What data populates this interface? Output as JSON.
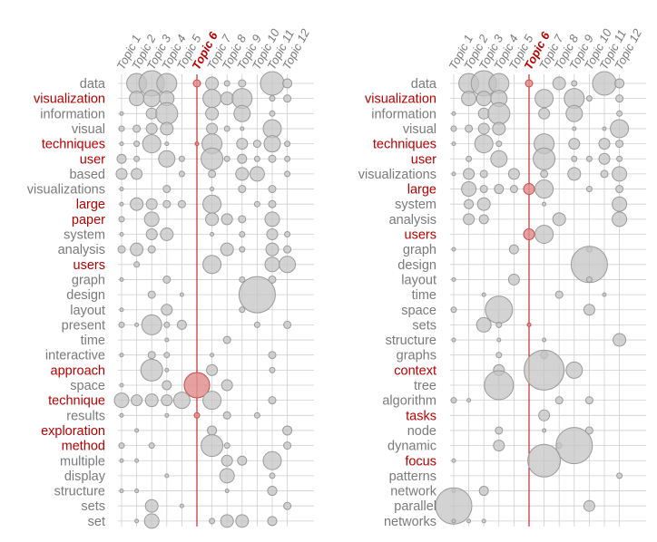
{
  "colors": {
    "highlight": "#b80000",
    "normal": "#7a7a7a",
    "grid": "#cfcfcf",
    "bubble_fill": "#c4c4c4",
    "bubble_stroke": "#9a9a9a",
    "bubble_fill_hl": "#e08f8f",
    "bubble_stroke_hl": "#c84a4a"
  },
  "chart_data": [
    {
      "type": "bubble-matrix",
      "topics": [
        "Topic 1",
        "Topic 2",
        "Topic 3",
        "Topic 4",
        "Topic 5",
        "Topic 6",
        "Topic 7",
        "Topic 8",
        "Topic 9",
        "Topic 10",
        "Topic 11",
        "Topic 12"
      ],
      "highlight_topic": 6,
      "terms": [
        "data",
        "visualization",
        "information",
        "visual",
        "techniques",
        "user",
        "based",
        "visualizations",
        "large",
        "paper",
        "system",
        "analysis",
        "users",
        "graph",
        "design",
        "layout",
        "present",
        "time",
        "interactive",
        "approach",
        "space",
        "technique",
        "results",
        "exploration",
        "method",
        "multiple",
        "display",
        "structure",
        "sets",
        "set"
      ],
      "highlighted_terms": [
        "visualization",
        "techniques",
        "user",
        "large",
        "paper",
        "users",
        "approach",
        "technique",
        "exploration",
        "method"
      ],
      "cells": [
        [
          0,
          1,
          11
        ],
        [
          0,
          2,
          14
        ],
        [
          0,
          3,
          11
        ],
        [
          0,
          5,
          4
        ],
        [
          0,
          6,
          7
        ],
        [
          0,
          7,
          3
        ],
        [
          0,
          8,
          4
        ],
        [
          0,
          10,
          13
        ],
        [
          0,
          11,
          5
        ],
        [
          1,
          1,
          8
        ],
        [
          1,
          2,
          9
        ],
        [
          1,
          3,
          8
        ],
        [
          1,
          6,
          10
        ],
        [
          1,
          7,
          7
        ],
        [
          1,
          8,
          11
        ],
        [
          1,
          10,
          3
        ],
        [
          1,
          11,
          4
        ],
        [
          2,
          0,
          2
        ],
        [
          2,
          2,
          6
        ],
        [
          2,
          3,
          12
        ],
        [
          2,
          6,
          7
        ],
        [
          2,
          8,
          9
        ],
        [
          2,
          10,
          3
        ],
        [
          3,
          0,
          3
        ],
        [
          3,
          1,
          4
        ],
        [
          3,
          2,
          6
        ],
        [
          3,
          3,
          7
        ],
        [
          3,
          6,
          6
        ],
        [
          3,
          7,
          3
        ],
        [
          3,
          8,
          2
        ],
        [
          3,
          10,
          10
        ],
        [
          4,
          0,
          2
        ],
        [
          4,
          1,
          3
        ],
        [
          4,
          2,
          10
        ],
        [
          4,
          3,
          2
        ],
        [
          4,
          5,
          2
        ],
        [
          4,
          6,
          11
        ],
        [
          4,
          8,
          6
        ],
        [
          4,
          9,
          4
        ],
        [
          4,
          10,
          9
        ],
        [
          4,
          11,
          3
        ],
        [
          5,
          0,
          5
        ],
        [
          5,
          1,
          3
        ],
        [
          5,
          3,
          9
        ],
        [
          5,
          4,
          3
        ],
        [
          5,
          6,
          12
        ],
        [
          5,
          7,
          3
        ],
        [
          5,
          8,
          5
        ],
        [
          5,
          9,
          3
        ],
        [
          5,
          10,
          4
        ],
        [
          5,
          11,
          3
        ],
        [
          6,
          0,
          6
        ],
        [
          6,
          1,
          6
        ],
        [
          6,
          4,
          3
        ],
        [
          6,
          6,
          4
        ],
        [
          6,
          8,
          7
        ],
        [
          6,
          9,
          8
        ],
        [
          6,
          11,
          3
        ],
        [
          7,
          0,
          2
        ],
        [
          7,
          3,
          4
        ],
        [
          7,
          6,
          2
        ],
        [
          7,
          8,
          4
        ],
        [
          7,
          10,
          4
        ],
        [
          8,
          0,
          2
        ],
        [
          8,
          1,
          7
        ],
        [
          8,
          2,
          6
        ],
        [
          8,
          3,
          4
        ],
        [
          8,
          4,
          4
        ],
        [
          8,
          6,
          10
        ],
        [
          8,
          9,
          3
        ],
        [
          8,
          10,
          4
        ],
        [
          9,
          0,
          3
        ],
        [
          9,
          2,
          8
        ],
        [
          9,
          6,
          7
        ],
        [
          9,
          7,
          6
        ],
        [
          9,
          8,
          4
        ],
        [
          9,
          10,
          8
        ],
        [
          10,
          0,
          2
        ],
        [
          10,
          2,
          6
        ],
        [
          10,
          3,
          7
        ],
        [
          10,
          6,
          2
        ],
        [
          10,
          8,
          3
        ],
        [
          10,
          10,
          6
        ],
        [
          10,
          11,
          3
        ],
        [
          11,
          0,
          4
        ],
        [
          11,
          1,
          7
        ],
        [
          11,
          2,
          4
        ],
        [
          11,
          7,
          7
        ],
        [
          11,
          8,
          3
        ],
        [
          11,
          10,
          7
        ],
        [
          11,
          11,
          4
        ],
        [
          12,
          1,
          3
        ],
        [
          12,
          6,
          10
        ],
        [
          12,
          10,
          8
        ],
        [
          12,
          11,
          9
        ],
        [
          13,
          0,
          2
        ],
        [
          13,
          3,
          4
        ],
        [
          13,
          8,
          3
        ],
        [
          13,
          10,
          4
        ],
        [
          14,
          2,
          4
        ],
        [
          14,
          4,
          2
        ],
        [
          14,
          9,
          20
        ],
        [
          15,
          0,
          2
        ],
        [
          15,
          3,
          6
        ],
        [
          15,
          8,
          3
        ],
        [
          16,
          0,
          3
        ],
        [
          16,
          1,
          2
        ],
        [
          16,
          2,
          11
        ],
        [
          16,
          3,
          3
        ],
        [
          16,
          4,
          5
        ],
        [
          16,
          9,
          3
        ],
        [
          16,
          11,
          4
        ],
        [
          17,
          3,
          2
        ],
        [
          17,
          7,
          4
        ],
        [
          18,
          0,
          2
        ],
        [
          18,
          2,
          4
        ],
        [
          18,
          3,
          3
        ],
        [
          18,
          6,
          2
        ],
        [
          18,
          10,
          4
        ],
        [
          19,
          2,
          12
        ],
        [
          19,
          3,
          2
        ],
        [
          19,
          6,
          6
        ],
        [
          19,
          10,
          3
        ],
        [
          20,
          0,
          2
        ],
        [
          20,
          3,
          5
        ],
        [
          20,
          5,
          14
        ],
        [
          20,
          7,
          6
        ],
        [
          21,
          0,
          8
        ],
        [
          21,
          1,
          6
        ],
        [
          21,
          2,
          7
        ],
        [
          21,
          3,
          6
        ],
        [
          21,
          4,
          9
        ],
        [
          21,
          6,
          10
        ],
        [
          21,
          10,
          4
        ],
        [
          22,
          0,
          2
        ],
        [
          22,
          3,
          2
        ],
        [
          22,
          5,
          3
        ],
        [
          22,
          7,
          4
        ],
        [
          22,
          9,
          3
        ],
        [
          23,
          1,
          2
        ],
        [
          23,
          6,
          5
        ],
        [
          23,
          11,
          5
        ],
        [
          24,
          0,
          3
        ],
        [
          24,
          2,
          3
        ],
        [
          24,
          6,
          12
        ],
        [
          24,
          7,
          3
        ],
        [
          24,
          11,
          4
        ],
        [
          25,
          0,
          2
        ],
        [
          25,
          1,
          2
        ],
        [
          25,
          7,
          6
        ],
        [
          25,
          8,
          5
        ],
        [
          25,
          10,
          10
        ],
        [
          26,
          3,
          2
        ],
        [
          26,
          7,
          8
        ],
        [
          26,
          10,
          3
        ],
        [
          27,
          0,
          2
        ],
        [
          27,
          1,
          2
        ],
        [
          27,
          7,
          2
        ],
        [
          27,
          10,
          5
        ],
        [
          28,
          2,
          7
        ],
        [
          28,
          4,
          2
        ],
        [
          28,
          11,
          4
        ],
        [
          29,
          1,
          2
        ],
        [
          29,
          2,
          8
        ],
        [
          29,
          6,
          3
        ],
        [
          29,
          7,
          7
        ],
        [
          29,
          8,
          7
        ],
        [
          29,
          10,
          5
        ]
      ]
    },
    {
      "type": "bubble-matrix",
      "topics": [
        "Topic 1",
        "Topic 2",
        "Topic 3",
        "Topic 4",
        "Topic 5",
        "Topic 6",
        "Topic 7",
        "Topic 8",
        "Topic 9",
        "Topic 10",
        "Topic 11",
        "Topic 12"
      ],
      "highlight_topic": 6,
      "terms": [
        "data",
        "visualization",
        "information",
        "visual",
        "techniques",
        "user",
        "visualizations",
        "large",
        "system",
        "analysis",
        "users",
        "graph",
        "design",
        "layout",
        "time",
        "space",
        "sets",
        "structure",
        "graphs",
        "context",
        "tree",
        "algorithm",
        "tasks",
        "node",
        "dynamic",
        "focus",
        "patterns",
        "network",
        "parallel",
        "networks"
      ],
      "highlighted_terms": [
        "visualization",
        "techniques",
        "user",
        "large",
        "users",
        "context",
        "tasks",
        "focus"
      ],
      "cells": [
        [
          0,
          1,
          11
        ],
        [
          0,
          2,
          14
        ],
        [
          0,
          3,
          11
        ],
        [
          0,
          5,
          4
        ],
        [
          0,
          7,
          7
        ],
        [
          0,
          8,
          3
        ],
        [
          0,
          10,
          13
        ],
        [
          0,
          11,
          5
        ],
        [
          0,
          12,
          4
        ],
        [
          1,
          1,
          8
        ],
        [
          1,
          2,
          8
        ],
        [
          1,
          3,
          9
        ],
        [
          1,
          6,
          10
        ],
        [
          1,
          8,
          11
        ],
        [
          1,
          9,
          3
        ],
        [
          1,
          11,
          4
        ],
        [
          2,
          0,
          2
        ],
        [
          2,
          2,
          6
        ],
        [
          2,
          3,
          12
        ],
        [
          2,
          6,
          6
        ],
        [
          2,
          8,
          9
        ],
        [
          2,
          11,
          3
        ],
        [
          3,
          0,
          3
        ],
        [
          3,
          1,
          4
        ],
        [
          3,
          2,
          6
        ],
        [
          3,
          3,
          7
        ],
        [
          3,
          8,
          2
        ],
        [
          3,
          10,
          2
        ],
        [
          3,
          11,
          10
        ],
        [
          4,
          0,
          2
        ],
        [
          4,
          2,
          10
        ],
        [
          4,
          3,
          3
        ],
        [
          4,
          6,
          11
        ],
        [
          4,
          8,
          6
        ],
        [
          4,
          10,
          6
        ],
        [
          4,
          11,
          4
        ],
        [
          5,
          1,
          3
        ],
        [
          5,
          3,
          9
        ],
        [
          5,
          6,
          12
        ],
        [
          5,
          8,
          3
        ],
        [
          5,
          9,
          3
        ],
        [
          5,
          10,
          6
        ],
        [
          5,
          11,
          3
        ],
        [
          6,
          0,
          2
        ],
        [
          6,
          1,
          6
        ],
        [
          6,
          2,
          4
        ],
        [
          6,
          4,
          6
        ],
        [
          6,
          6,
          4
        ],
        [
          6,
          8,
          7
        ],
        [
          6,
          10,
          4
        ],
        [
          6,
          11,
          8
        ],
        [
          6,
          12,
          3
        ],
        [
          7,
          1,
          8
        ],
        [
          7,
          2,
          4
        ],
        [
          7,
          3,
          5
        ],
        [
          7,
          4,
          4
        ],
        [
          7,
          5,
          6
        ],
        [
          7,
          6,
          10
        ],
        [
          7,
          9,
          3
        ],
        [
          7,
          11,
          4
        ],
        [
          8,
          1,
          5
        ],
        [
          8,
          2,
          7
        ],
        [
          8,
          6,
          2
        ],
        [
          8,
          11,
          8
        ],
        [
          9,
          1,
          6
        ],
        [
          9,
          2,
          5
        ],
        [
          9,
          7,
          7
        ],
        [
          9,
          11,
          8
        ],
        [
          9,
          12,
          8
        ],
        [
          10,
          5,
          6
        ],
        [
          10,
          6,
          10
        ],
        [
          11,
          0,
          2
        ],
        [
          11,
          4,
          5
        ],
        [
          11,
          9,
          3
        ],
        [
          12,
          9,
          20
        ],
        [
          13,
          0,
          2
        ],
        [
          13,
          4,
          6
        ],
        [
          13,
          9,
          3
        ],
        [
          14,
          2,
          2
        ],
        [
          14,
          7,
          4
        ],
        [
          14,
          10,
          2
        ],
        [
          15,
          0,
          3
        ],
        [
          15,
          3,
          15
        ],
        [
          15,
          9,
          6
        ],
        [
          16,
          2,
          8
        ],
        [
          16,
          3,
          3
        ],
        [
          16,
          5,
          2
        ],
        [
          16,
          12,
          6
        ],
        [
          17,
          0,
          2
        ],
        [
          17,
          3,
          2
        ],
        [
          17,
          6,
          2
        ],
        [
          17,
          11,
          7
        ],
        [
          18,
          3,
          3
        ],
        [
          18,
          6,
          4
        ],
        [
          19,
          3,
          6
        ],
        [
          19,
          6,
          22
        ],
        [
          19,
          8,
          9
        ],
        [
          20,
          3,
          16
        ],
        [
          21,
          0,
          3
        ],
        [
          21,
          1,
          2
        ],
        [
          21,
          7,
          4
        ],
        [
          21,
          9,
          4
        ],
        [
          22,
          6,
          6
        ],
        [
          23,
          3,
          4
        ],
        [
          23,
          6,
          2
        ],
        [
          23,
          9,
          4
        ],
        [
          24,
          3,
          6
        ],
        [
          24,
          7,
          3
        ],
        [
          24,
          8,
          20
        ],
        [
          25,
          0,
          2
        ],
        [
          25,
          6,
          18
        ],
        [
          26,
          11,
          3
        ],
        [
          27,
          0,
          2
        ],
        [
          27,
          2,
          5
        ],
        [
          28,
          0,
          20
        ],
        [
          28,
          9,
          6
        ],
        [
          29,
          0,
          2
        ],
        [
          29,
          1,
          2
        ],
        [
          29,
          2,
          2
        ]
      ]
    }
  ]
}
